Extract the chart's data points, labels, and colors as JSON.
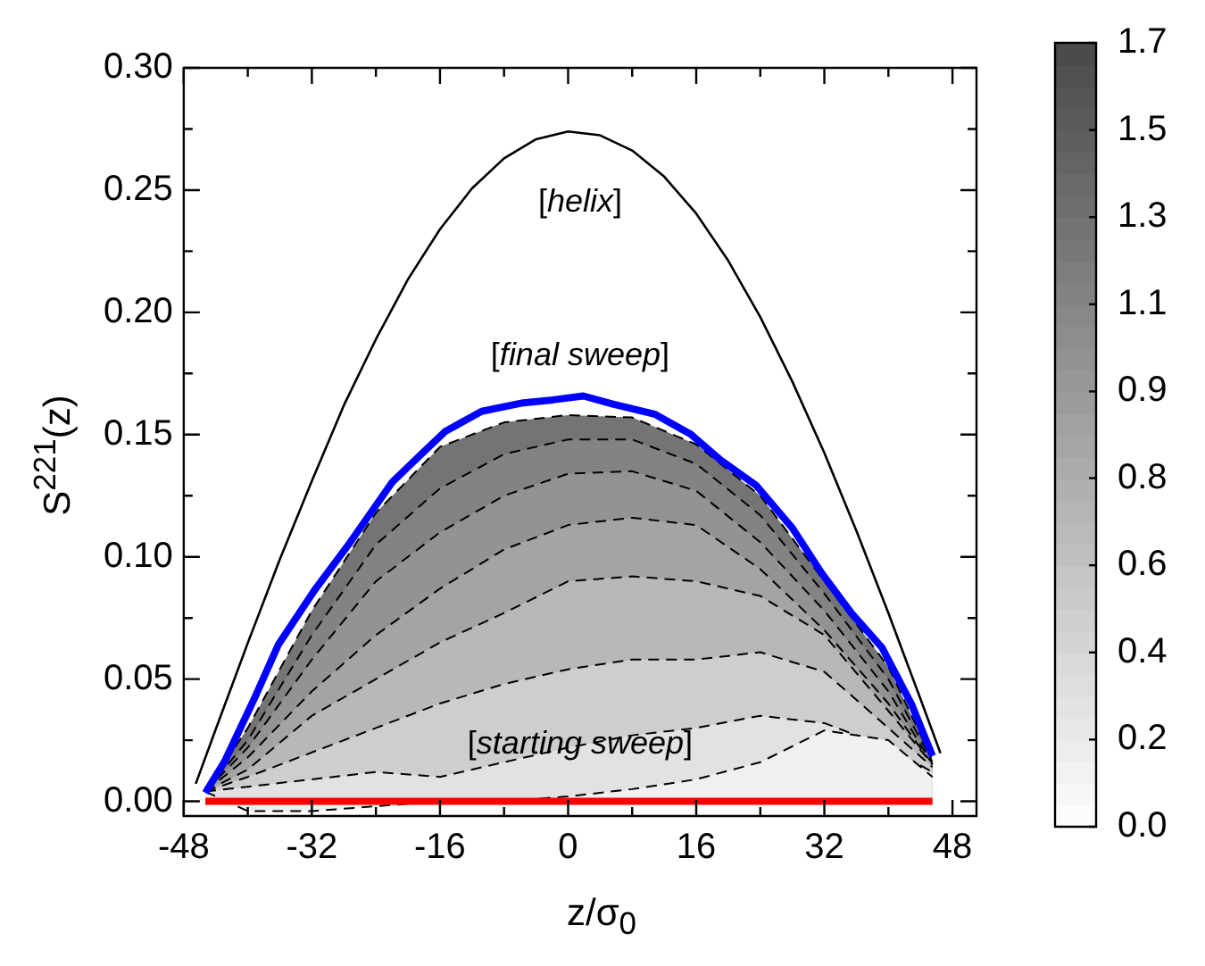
{
  "chart_data": {
    "type": "line",
    "xlabel": "z/σ$_{0}$",
    "ylabel": "S$^{221}$(z)",
    "xlim": [
      -48,
      51
    ],
    "xticks": [
      -48,
      {
        "value": -40,
        "label": null
      },
      -32,
      {
        "value": -24,
        "label": null
      },
      -16,
      {
        "value": -8,
        "label": null
      },
      0,
      {
        "value": 8,
        "label": null
      },
      16,
      {
        "value": 24,
        "label": null
      },
      32,
      {
        "value": 40,
        "label": null
      },
      48
    ],
    "ylim": [
      -0.006,
      0.3
    ],
    "yticks": [
      {
        "value": 0,
        "label": "0.00"
      },
      {
        "value": 0.025,
        "label": null
      },
      {
        "value": 0.05,
        "label": "0.05"
      },
      {
        "value": 0.075,
        "label": null
      },
      {
        "value": 0.1,
        "label": "0.10"
      },
      {
        "value": 0.125,
        "label": null
      },
      {
        "value": 0.15,
        "label": "0.15"
      },
      {
        "value": 0.175,
        "label": null
      },
      {
        "value": 0.2,
        "label": "0.20"
      },
      {
        "value": 0.225,
        "label": null
      },
      {
        "value": 0.25,
        "label": "0.25"
      },
      {
        "value": 0.275,
        "label": null
      },
      {
        "value": 0.3,
        "label": "0.30"
      }
    ],
    "grid": false,
    "legend": false,
    "clim": [
      0,
      1.7
    ],
    "cticks": [
      {
        "value": 0,
        "label": "0.0"
      },
      {
        "value": 0.189,
        "label": "0.2"
      },
      {
        "value": 0.378,
        "label": "0.4"
      },
      {
        "value": 0.567,
        "label": "0.6"
      },
      {
        "value": 0.756,
        "label": "0.8"
      },
      {
        "value": 0.944,
        "label": "0.9"
      },
      {
        "value": 1.133,
        "label": "1.1"
      },
      {
        "value": 1.322,
        "label": "1.3"
      },
      {
        "value": 1.511,
        "label": "1.5"
      },
      {
        "value": 1.7,
        "label": "1.7"
      }
    ],
    "x": [
      -45.3,
      -40,
      -32,
      -24,
      -16,
      -8,
      0,
      8,
      16,
      24,
      32,
      40,
      45.5
    ],
    "series": [
      {
        "color": "#ff0000",
        "line_style": "solid",
        "values": [
          0,
          0,
          0,
          0,
          0,
          0,
          0,
          0,
          0,
          0,
          0,
          0,
          0
        ]
      },
      {
        "type": "area",
        "color": "#f0f0f0",
        "line_style": "dashed",
        "values": [
          0.004,
          -0.004,
          -0.004,
          -0.002,
          0,
          0,
          0.002,
          0.005,
          0.009,
          0.016,
          0.029,
          0.025,
          0.01
        ]
      },
      {
        "type": "area",
        "color": "#e2e2e2",
        "line_style": "dashed",
        "values": [
          0.004,
          0.006,
          0.009,
          0.012,
          0.01,
          0.016,
          0.022,
          0.027,
          0.03,
          0.035,
          0.032,
          0.022,
          0.012
        ]
      },
      {
        "type": "area",
        "color": "#cecece",
        "line_style": "dashed",
        "values": [
          0.004,
          0.01,
          0.02,
          0.03,
          0.04,
          0.048,
          0.054,
          0.058,
          0.058,
          0.061,
          0.053,
          0.03,
          0.014
        ]
      },
      {
        "type": "area",
        "color": "#b8b8b8",
        "line_style": "dashed",
        "values": [
          0.004,
          0.013,
          0.035,
          0.05,
          0.065,
          0.077,
          0.09,
          0.092,
          0.09,
          0.084,
          0.068,
          0.037,
          0.015
        ]
      },
      {
        "type": "area",
        "color": "#a4a4a4",
        "line_style": "dashed",
        "values": [
          0.004,
          0.018,
          0.045,
          0.068,
          0.087,
          0.103,
          0.113,
          0.116,
          0.113,
          0.095,
          0.07,
          0.04,
          0.015
        ]
      },
      {
        "type": "area",
        "color": "#939393",
        "line_style": "dashed",
        "values": [
          0.004,
          0.022,
          0.058,
          0.09,
          0.11,
          0.125,
          0.134,
          0.135,
          0.127,
          0.106,
          0.078,
          0.045,
          0.015
        ]
      },
      {
        "type": "area",
        "color": "#838383",
        "line_style": "dashed",
        "values": [
          0.004,
          0.025,
          0.068,
          0.105,
          0.128,
          0.142,
          0.148,
          0.148,
          0.138,
          0.117,
          0.085,
          0.05,
          0.016
        ]
      },
      {
        "type": "area",
        "color": "#747474",
        "line_style": "dashed",
        "values": [
          0.004,
          0.03,
          0.078,
          0.118,
          0.145,
          0.155,
          0.158,
          0.157,
          0.146,
          0.125,
          0.09,
          0.055,
          0.017
        ]
      },
      {
        "color": "#0000ff",
        "line_style": "solid",
        "x": [
          -45.3,
          -42.9,
          -39.2,
          -36.2,
          -31.7,
          -27.2,
          -22,
          -18.3,
          -15.3,
          -10.8,
          -5.6,
          -1.9,
          1.9,
          5.6,
          10.8,
          15.3,
          19,
          23.5,
          28,
          31.7,
          35.4,
          39.2,
          42.9,
          45.5
        ],
        "values": [
          0.0035,
          0.0163,
          0.0419,
          0.064,
          0.0862,
          0.106,
          0.1304,
          0.1421,
          0.1514,
          0.1595,
          0.163,
          0.1642,
          0.1658,
          0.1625,
          0.1584,
          0.1502,
          0.1397,
          0.1292,
          0.1118,
          0.0932,
          0.0769,
          0.0629,
          0.0396,
          0.0186
        ]
      },
      {
        "color": "#000000",
        "line_style": "solid",
        "x": [
          -46.5,
          -44,
          -40,
          -36,
          -32,
          -28,
          -24,
          -20,
          -16,
          -12,
          -8,
          -4,
          0,
          4,
          8,
          12,
          16,
          20,
          24,
          28,
          32,
          36,
          40,
          44,
          46.5
        ],
        "values": [
          0.0072,
          0.0295,
          0.0648,
          0.099,
          0.131,
          0.162,
          0.189,
          0.2135,
          0.234,
          0.2507,
          0.263,
          0.2708,
          0.274,
          0.2724,
          0.2662,
          0.2555,
          0.2404,
          0.2211,
          0.1981,
          0.1717,
          0.1425,
          0.1107,
          0.077,
          0.0419,
          0.0197
        ]
      }
    ],
    "annotations": [
      "[helix]",
      "[final sweep]",
      "[starting sweep]"
    ]
  }
}
